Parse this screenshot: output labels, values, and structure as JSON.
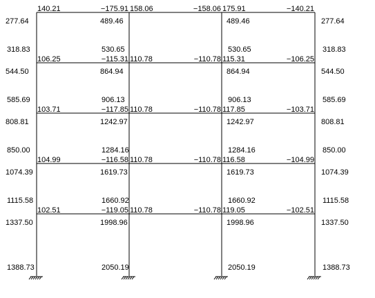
{
  "floors": [
    {
      "beam_moments": [
        "140.21",
        "−175.91",
        "158.06",
        "−158.06",
        "175.91",
        "−140.21"
      ],
      "axial_top": [
        "277.64",
        "489.46",
        "489.46",
        "277.64"
      ],
      "axial_bottom": [
        "318.83",
        "530.65",
        "530.65",
        "318.83"
      ]
    },
    {
      "beam_moments": [
        "106.25",
        "−115.31",
        "110.78",
        "−110.78",
        "115.31",
        "−106.25"
      ],
      "axial_top": [
        "544.50",
        "864.94",
        "864.94",
        "544.50"
      ],
      "axial_bottom": [
        "585.69",
        "906.13",
        "906.13",
        "585.69"
      ]
    },
    {
      "beam_moments": [
        "103.71",
        "−117.85",
        "110.78",
        "−110.78",
        "117.85",
        "−103.71"
      ],
      "axial_top": [
        "808.81",
        "1242.97",
        "1242.97",
        "808.81"
      ],
      "axial_bottom": [
        "850.00",
        "1284.16",
        "1284.16",
        "850.00"
      ]
    },
    {
      "beam_moments": [
        "104.99",
        "−116.58",
        "110.78",
        "−110.78",
        "116.58",
        "−104.99"
      ],
      "axial_top": [
        "1074.39",
        "1619.73",
        "1619.73",
        "1074.39"
      ],
      "axial_bottom": [
        "1115.58",
        "1660.92",
        "1660.92",
        "1115.58"
      ]
    },
    {
      "beam_moments": [
        "102.51",
        "−119.05",
        "110.78",
        "−110.78",
        "119.05",
        "−102.51"
      ],
      "axial_top": [
        "1337.50",
        "1998.96",
        "1998.96",
        "1337.50"
      ],
      "axial_bottom": [
        "1388.73",
        "2050.19",
        "2050.19",
        "1388.73"
      ]
    }
  ]
}
